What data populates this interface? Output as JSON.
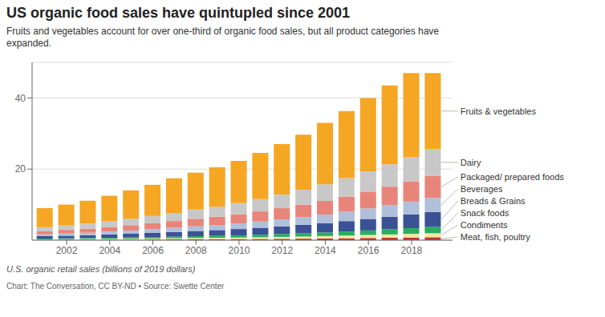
{
  "chart_data": {
    "type": "bar",
    "stacked": true,
    "title": "US organic food sales have quintupled since 2001",
    "subtitle": "Fruits and vegetables account for over one-third of organic food sales, but all product categories have\nexpanded.",
    "ylabel": "U.S. organic retail sales (billions of 2019 dollars)",
    "footnote": "Chart: The Conversation, CC BY-ND • Source: Swette Center",
    "x": [
      2001,
      2002,
      2003,
      2004,
      2005,
      2006,
      2007,
      2008,
      2009,
      2010,
      2011,
      2012,
      2013,
      2014,
      2015,
      2016,
      2017,
      2018,
      2019
    ],
    "xlim": [
      2000.4,
      2019.9
    ],
    "xticks": [
      2002,
      2004,
      2006,
      2008,
      2010,
      2012,
      2014,
      2016,
      2018
    ],
    "ylim": [
      0,
      50
    ],
    "yticks": [
      20,
      40
    ],
    "grid": true,
    "series": [
      {
        "name": "Meat, fish, poultry",
        "color": "#c0392b",
        "values": [
          0.1,
          0.12,
          0.13,
          0.15,
          0.17,
          0.19,
          0.22,
          0.25,
          0.27,
          0.3,
          0.33,
          0.38,
          0.42,
          0.48,
          0.55,
          0.62,
          0.68,
          0.75,
          0.82
        ]
      },
      {
        "name": "Condiments",
        "color": "#f5e6a3",
        "values": [
          0.15,
          0.17,
          0.19,
          0.22,
          0.25,
          0.28,
          0.32,
          0.36,
          0.39,
          0.43,
          0.48,
          0.54,
          0.6,
          0.67,
          0.75,
          0.84,
          0.93,
          1.03,
          1.13
        ]
      },
      {
        "name": "Snack foods",
        "color": "#27ae60",
        "values": [
          0.2,
          0.23,
          0.26,
          0.3,
          0.34,
          0.39,
          0.45,
          0.51,
          0.56,
          0.63,
          0.71,
          0.8,
          0.9,
          1.01,
          1.14,
          1.28,
          1.43,
          1.59,
          1.75
        ]
      },
      {
        "name": "Breads & Grains",
        "color": "#3a5295",
        "values": [
          0.65,
          0.73,
          0.82,
          0.93,
          1.05,
          1.18,
          1.32,
          1.47,
          1.61,
          1.77,
          1.96,
          2.17,
          2.39,
          2.64,
          2.92,
          3.23,
          3.55,
          3.89,
          4.24
        ]
      },
      {
        "name": "Beverages",
        "color": "#b0bfda",
        "values": [
          0.55,
          0.62,
          0.7,
          0.8,
          0.91,
          1.03,
          1.17,
          1.31,
          1.44,
          1.59,
          1.76,
          1.96,
          2.17,
          2.4,
          2.66,
          2.95,
          3.26,
          3.59,
          3.93
        ]
      },
      {
        "name": "Packaged/ prepared foods",
        "color": "#e8857a",
        "values": [
          0.9,
          1.02,
          1.15,
          1.31,
          1.49,
          1.68,
          1.9,
          2.12,
          2.33,
          2.57,
          2.84,
          3.15,
          3.48,
          3.85,
          4.26,
          4.72,
          5.2,
          5.71,
          6.25
        ]
      },
      {
        "name": "Dairy",
        "color": "#c8c8c8",
        "values": [
          1.1,
          1.24,
          1.4,
          1.59,
          1.81,
          2.04,
          2.3,
          2.57,
          2.82,
          3.11,
          3.44,
          3.81,
          4.21,
          4.66,
          5.16,
          5.71,
          6.28,
          6.89,
          7.54
        ]
      },
      {
        "name": "Fruits & vegetables",
        "color": "#f5a623",
        "values": [
          5.35,
          5.87,
          6.45,
          7.2,
          8.0,
          8.79,
          9.72,
          10.41,
          11.08,
          11.9,
          13.03,
          14.19,
          15.53,
          17.29,
          18.87,
          20.65,
          22.17,
          23.55,
          21.34
        ]
      }
    ]
  }
}
